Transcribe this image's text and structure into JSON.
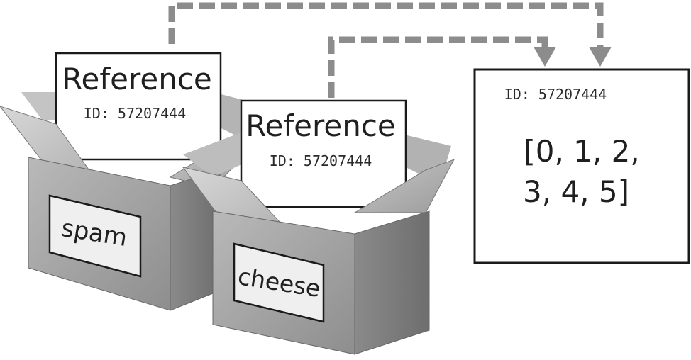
{
  "box_spam": {
    "label": "spam",
    "card": {
      "title": "Reference",
      "id_text": "ID: 57207444"
    }
  },
  "box_cheese": {
    "label": "cheese",
    "card": {
      "title": "Reference",
      "id_text": "ID: 57207444"
    }
  },
  "memory_object": {
    "id_text": "ID: 57207444",
    "value_line1": "[0, 1, 2,",
    "value_line2": "3, 4, 5]"
  },
  "colors": {
    "arrow": "#8c8c8c",
    "box_light": "#cfcfcf",
    "box_mid": "#a9a9a9",
    "box_dark": "#7e7e7e",
    "card_border": "#1a1a1a"
  }
}
